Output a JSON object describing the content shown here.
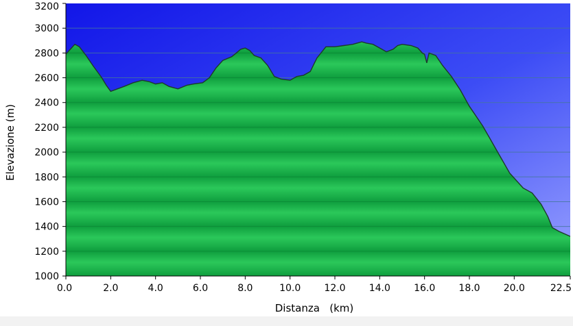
{
  "chart_data": {
    "type": "area",
    "title": "",
    "xlabel": "Distanza   (km)",
    "ylabel": "Elevazione (m)",
    "xlim": [
      0,
      22.5
    ],
    "ylim": [
      1000,
      3200
    ],
    "x_ticks": [
      0,
      2,
      4,
      6,
      8,
      10,
      12,
      14,
      16,
      18,
      20,
      22.5
    ],
    "x_tick_labels": [
      "0.0",
      "2.0",
      "4.0",
      "6.0",
      "8.0",
      "10.0",
      "12.0",
      "14.0",
      "16.0",
      "18.0",
      "20.0",
      "22.5"
    ],
    "y_ticks": [
      1000,
      1200,
      1400,
      1600,
      1800,
      2000,
      2200,
      2400,
      2600,
      2800,
      3000,
      3200
    ],
    "y_tick_labels": [
      "1000",
      "1200",
      "1400",
      "1600",
      "1800",
      "2000",
      "2200",
      "2400",
      "2600",
      "2800",
      "3000",
      "3200"
    ],
    "grid": true,
    "series": [
      {
        "x": [
          0,
          0.2,
          0.4,
          0.6,
          0.9,
          1.2,
          1.6,
          1.8,
          2.0,
          2.3,
          2.6,
          3.0,
          3.4,
          3.7,
          4.0,
          4.3,
          4.6,
          5.0,
          5.4,
          5.7,
          6.1,
          6.4,
          6.7,
          7.0,
          7.4,
          7.6,
          7.8,
          8.0,
          8.2,
          8.4,
          8.7,
          9.0,
          9.3,
          9.6,
          10.0,
          10.3,
          10.6,
          10.9,
          11.2,
          11.6,
          12.0,
          12.4,
          12.8,
          13.2,
          13.4,
          13.7,
          14.0,
          14.3,
          14.6,
          14.8,
          15.0,
          15.4,
          15.7,
          15.9,
          16.0,
          16.1,
          16.2,
          16.5,
          16.8,
          17.2,
          17.6,
          18.0,
          18.6,
          19.2,
          19.8,
          20.4,
          20.8,
          21.2,
          21.5,
          21.7,
          22.0,
          22.5
        ],
        "y": [
          2790,
          2830,
          2870,
          2850,
          2780,
          2700,
          2600,
          2540,
          2490,
          2510,
          2530,
          2560,
          2580,
          2570,
          2550,
          2560,
          2530,
          2510,
          2540,
          2550,
          2560,
          2600,
          2680,
          2740,
          2770,
          2800,
          2830,
          2840,
          2820,
          2780,
          2760,
          2700,
          2610,
          2590,
          2580,
          2610,
          2620,
          2650,
          2760,
          2850,
          2850,
          2860,
          2870,
          2890,
          2880,
          2870,
          2840,
          2810,
          2830,
          2860,
          2870,
          2860,
          2840,
          2800,
          2790,
          2720,
          2800,
          2780,
          2700,
          2610,
          2500,
          2370,
          2210,
          2020,
          1830,
          1710,
          1670,
          1580,
          1480,
          1390,
          1360,
          1320
        ]
      }
    ]
  }
}
